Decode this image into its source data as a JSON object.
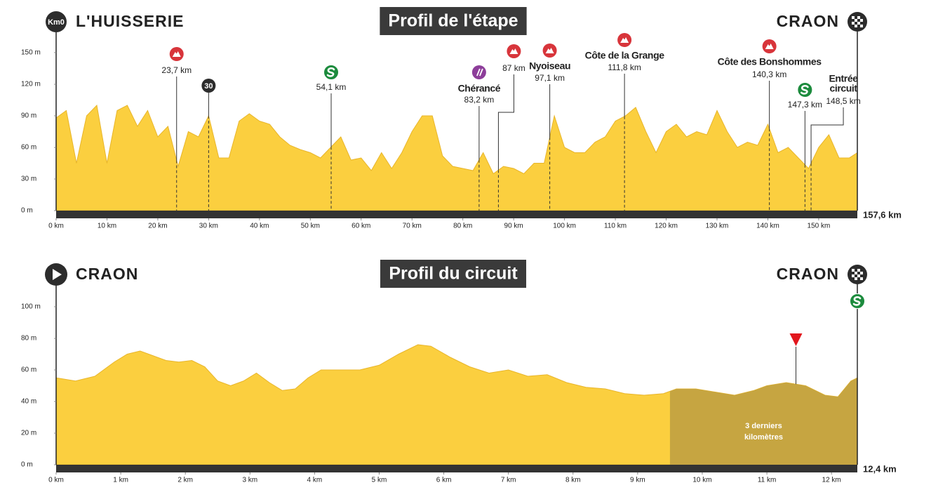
{
  "chart_data": [
    {
      "type": "area",
      "title": "Profil de l'étape",
      "start": {
        "badge": "Km0",
        "name": "L'HUISSERIE"
      },
      "finish": "CRAON",
      "distance_label": "157,6 km",
      "color": "#fbcf3f",
      "x": [
        0,
        2,
        4,
        6,
        8,
        10,
        12,
        14,
        16,
        18,
        20,
        22,
        24,
        26,
        28,
        30,
        32,
        34,
        36,
        38,
        40,
        42,
        44,
        46,
        48,
        50,
        52,
        54,
        56,
        58,
        60,
        62,
        64,
        66,
        68,
        70,
        72,
        74,
        76,
        78,
        80,
        82,
        84,
        86,
        88,
        90,
        92,
        94,
        96,
        98,
        100,
        102,
        104,
        106,
        108,
        110,
        112,
        114,
        116,
        118,
        120,
        122,
        124,
        126,
        128,
        130,
        132,
        134,
        136,
        138,
        140,
        142,
        144,
        146,
        148,
        150,
        152,
        154,
        156,
        157.6
      ],
      "values": [
        88,
        95,
        45,
        90,
        100,
        45,
        95,
        100,
        80,
        95,
        70,
        80,
        42,
        75,
        70,
        90,
        50,
        50,
        85,
        92,
        85,
        82,
        70,
        62,
        58,
        55,
        50,
        60,
        70,
        48,
        50,
        38,
        55,
        40,
        55,
        75,
        90,
        90,
        52,
        42,
        40,
        38,
        55,
        35,
        42,
        40,
        35,
        45,
        45,
        90,
        60,
        55,
        55,
        65,
        70,
        85,
        90,
        98,
        75,
        55,
        75,
        82,
        70,
        75,
        72,
        95,
        75,
        60,
        65,
        62,
        82,
        55,
        60,
        50,
        40,
        60,
        72,
        50,
        50,
        55
      ],
      "xlim": [
        0,
        157.6
      ],
      "ylim": [
        0,
        160
      ],
      "xticks": [
        {
          "value": 0,
          "label": "0 km"
        },
        {
          "value": 10,
          "label": "10 km"
        },
        {
          "value": 20,
          "label": "20 km"
        },
        {
          "value": 30,
          "label": "30 km"
        },
        {
          "value": 40,
          "label": "40 km"
        },
        {
          "value": 50,
          "label": "50 km"
        },
        {
          "value": 60,
          "label": "60 km"
        },
        {
          "value": 70,
          "label": "70 km"
        },
        {
          "value": 80,
          "label": "80 km"
        },
        {
          "value": 90,
          "label": "90 km"
        },
        {
          "value": 100,
          "label": "100 km"
        },
        {
          "value": 110,
          "label": "110 km"
        },
        {
          "value": 120,
          "label": "120 km"
        },
        {
          "value": 130,
          "label": "130 km"
        },
        {
          "value": 140,
          "label": "140 km"
        },
        {
          "value": 150,
          "label": "150 km"
        }
      ],
      "yticks": [
        {
          "value": 0,
          "label": "0 m"
        },
        {
          "value": 30,
          "label": "30 m"
        },
        {
          "value": 60,
          "label": "60 m"
        },
        {
          "value": 90,
          "label": "90 m"
        },
        {
          "value": 120,
          "label": "120 m"
        },
        {
          "value": 150,
          "label": "150 m"
        }
      ],
      "markers": [
        {
          "kind": "climb",
          "x": 23.7,
          "km": "23,7 km"
        },
        {
          "kind": "badge",
          "x": 30,
          "label": "30"
        },
        {
          "kind": "sprint",
          "x": 54.1,
          "km": "54,1 km"
        },
        {
          "kind": "feed",
          "x": 83.2,
          "name": [
            "Chérancé"
          ],
          "km": "83,2 km"
        },
        {
          "kind": "climb",
          "x": 87,
          "km": "87 km"
        },
        {
          "kind": "climb",
          "x": 97.1,
          "name": [
            "Nyoiseau"
          ],
          "km": "97,1 km"
        },
        {
          "kind": "climb",
          "x": 111.8,
          "name": [
            "Côte de la Grange"
          ],
          "km": "111,8 km"
        },
        {
          "kind": "climb",
          "x": 140.3,
          "name": [
            "Côte des Bonshommes"
          ],
          "km": "140,3 km"
        },
        {
          "kind": "sprint",
          "x": 147.3,
          "km": "147,3 km"
        },
        {
          "kind": "none",
          "x": 148.5,
          "name": [
            "Entrée",
            "circuit"
          ],
          "km": "148,5 km"
        }
      ]
    },
    {
      "type": "area",
      "title": "Profil du circuit",
      "start": {
        "icon": "play",
        "name": "CRAON"
      },
      "finish": "CRAON",
      "distance_label": "12,4 km",
      "color": "#fbcf3f",
      "x": [
        0,
        0.3,
        0.6,
        0.9,
        1.1,
        1.3,
        1.5,
        1.7,
        1.9,
        2.1,
        2.3,
        2.5,
        2.7,
        2.9,
        3.1,
        3.3,
        3.5,
        3.7,
        3.9,
        4.1,
        4.4,
        4.7,
        5,
        5.3,
        5.6,
        5.8,
        6.1,
        6.4,
        6.7,
        7,
        7.3,
        7.6,
        7.9,
        8.2,
        8.5,
        8.8,
        9.1,
        9.4,
        9.6,
        9.9,
        10.2,
        10.5,
        10.8,
        11,
        11.3,
        11.6,
        11.9,
        12.1,
        12.3,
        12.4
      ],
      "values": [
        55,
        53,
        56,
        65,
        70,
        72,
        69,
        66,
        65,
        66,
        62,
        53,
        50,
        53,
        58,
        52,
        47,
        48,
        55,
        60,
        60,
        60,
        63,
        70,
        76,
        75,
        68,
        62,
        58,
        60,
        56,
        57,
        52,
        49,
        48,
        45,
        44,
        45,
        48,
        48,
        46,
        44,
        47,
        50,
        52,
        50,
        44,
        43,
        53,
        55
      ],
      "xlim": [
        0,
        12.4
      ],
      "ylim": [
        0,
        110
      ],
      "xticks": [
        {
          "value": 0,
          "label": "0 km"
        },
        {
          "value": 1,
          "label": "1 km"
        },
        {
          "value": 2,
          "label": "2 km"
        },
        {
          "value": 3,
          "label": "3 km"
        },
        {
          "value": 4,
          "label": "4 km"
        },
        {
          "value": 5,
          "label": "5 km"
        },
        {
          "value": 6,
          "label": "6 km"
        },
        {
          "value": 7,
          "label": "7 km"
        },
        {
          "value": 8,
          "label": "8 km"
        },
        {
          "value": 9,
          "label": "9 km"
        },
        {
          "value": 10,
          "label": "10 km"
        },
        {
          "value": 11,
          "label": "11 km"
        },
        {
          "value": 12,
          "label": "12 km"
        }
      ],
      "yticks": [
        {
          "value": 0,
          "label": "0 m"
        },
        {
          "value": 20,
          "label": "20 m"
        },
        {
          "value": 40,
          "label": "40 m"
        },
        {
          "value": 60,
          "label": "60 m"
        },
        {
          "value": 80,
          "label": "80 m"
        },
        {
          "value": 100,
          "label": "100 m"
        }
      ],
      "highlight": {
        "from": 9.5,
        "to": 12.4,
        "color": "#c6a541",
        "label": [
          "3 derniers",
          "kilomètres"
        ]
      },
      "markers": [
        {
          "kind": "flamme",
          "x": 11.45
        },
        {
          "kind": "sprint",
          "x": 12.4
        }
      ]
    }
  ]
}
